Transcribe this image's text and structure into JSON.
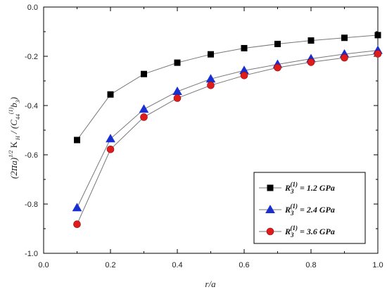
{
  "chart_data": {
    "type": "line",
    "xlabel": "r/a",
    "ylabel": "(2πa)^1/2 K_H / (C44^(1) b3)",
    "xlim": [
      0.0,
      1.0
    ],
    "ylim": [
      -1.0,
      0.0
    ],
    "xticks": [
      "0.0",
      "0.2",
      "0.4",
      "0.6",
      "0.8",
      "1.0"
    ],
    "yticks": [
      "0.0",
      "-0.2",
      "-0.4",
      "-0.6",
      "-0.8",
      "-1.0"
    ],
    "x": [
      0.1,
      0.2,
      0.3,
      0.4,
      0.5,
      0.6,
      0.7,
      0.8,
      0.9,
      1.0
    ],
    "grid": false,
    "legend_position": "lower-right",
    "series": [
      {
        "name": "R3(1) = 1.2 GPa",
        "name_main": "R",
        "name_sub": "3",
        "name_sup": "(1)",
        "name_rest": " = 1.2 GPa",
        "marker": "square",
        "color": "#000000",
        "values": [
          -0.54,
          -0.355,
          -0.272,
          -0.226,
          -0.192,
          -0.167,
          -0.15,
          -0.136,
          -0.125,
          -0.114
        ]
      },
      {
        "name": "R3(1) = 2.4 GPa",
        "name_main": "R",
        "name_sub": "3",
        "name_sup": "(1)",
        "name_rest": " = 2.4 GPa",
        "marker": "triangle",
        "color": "#1a2fd0",
        "values": [
          -0.815,
          -0.535,
          -0.415,
          -0.343,
          -0.292,
          -0.258,
          -0.233,
          -0.21,
          -0.191,
          -0.176
        ]
      },
      {
        "name": "R3(1) = 3.6 GPa",
        "name_main": "R",
        "name_sub": "3",
        "name_sup": "(1)",
        "name_rest": " = 3.6 GPa",
        "marker": "circle",
        "color": "#e01b1b",
        "values": [
          -0.882,
          -0.578,
          -0.447,
          -0.37,
          -0.318,
          -0.278,
          -0.246,
          -0.224,
          -0.206,
          -0.19
        ]
      }
    ]
  }
}
